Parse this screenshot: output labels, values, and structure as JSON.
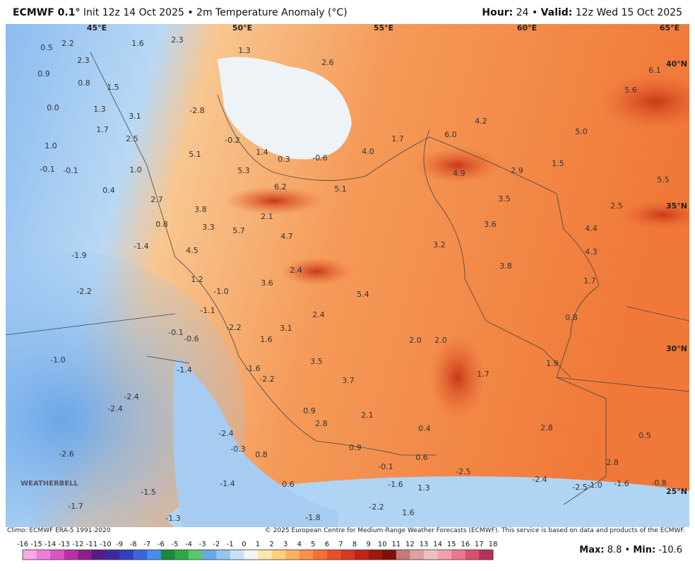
{
  "header": {
    "model": "ECMWF 0.1°",
    "init": "Init 12z 14 Oct 2025 • 2m Temperature Anomaly (°C)",
    "hour_label": "Hour:",
    "hour": "24 •",
    "valid_label": "Valid:",
    "valid": "12z Wed 15 Oct 2025"
  },
  "map_labels": [
    "0.5",
    "2.2",
    "2.3",
    "1.6",
    "2.3",
    "1.3",
    "2.6",
    "0.9",
    "0.8",
    "1.5",
    "0.0",
    "1.3",
    "3.1",
    "-2.8",
    "1.7",
    "2.5",
    "-0.2",
    "1.0",
    "1.4",
    "0.3",
    "-0.6",
    "4.0",
    "1.7",
    "6.0",
    "4.2",
    "5.0",
    "5.6",
    "6.1",
    "5.1",
    "-0.1",
    "-0.1",
    "1.0",
    "5.3",
    "6.2",
    "5.1",
    "4.9",
    "2.9",
    "1.5",
    "5.5",
    "0.4",
    "2.7",
    "3.5",
    "2.5",
    "3.8",
    "2.1",
    "0.8",
    "3.3",
    "5.7",
    "4.7",
    "3.6",
    "4.4",
    "-1.4",
    "4.5",
    "3.2",
    "-1.9",
    "4.3",
    "3.8",
    "2.4",
    "1.2",
    "3.6",
    "1.7",
    "-2.2",
    "-1.0",
    "5.4",
    "-1.1",
    "2.4",
    "0.8",
    "-0.1",
    "-2.2",
    "3.1",
    "-0.6",
    "1.6",
    "2.0",
    "2.0",
    "-1.0",
    "3.5",
    "1.9",
    "-1.6",
    "-1.4",
    "-2.2",
    "3.7",
    "1.7",
    "-2.4",
    "-2.4",
    "0.9",
    "2.1",
    "2.8",
    "0.4",
    "2.8",
    "-2.4",
    "0.5",
    "-0.3",
    "0.9",
    "0.8",
    "-2.6",
    "0.6",
    "-0.1",
    "2.8",
    "-2.5",
    "-1.4",
    "-1.6",
    "0.6",
    "1.3",
    "-2.4",
    "-2.5",
    "-1.0",
    "-1.6",
    "-0.8",
    "-1.5",
    "-1.7",
    "-2.2",
    "1.6",
    "-1.8",
    "-1.3"
  ],
  "grid_labels": [
    "45°E",
    "50°E",
    "55°E",
    "60°E",
    "65°E",
    "40°N",
    "35°N",
    "30°N",
    "25°N"
  ],
  "logo": "WEATHERBELL",
  "footer": {
    "climo": "Climo: ECMWF ERA-5 1991-2020",
    "copyright": "© 2025 European Centre for Medium-Range Weather Forecasts (ECMWF). This service is based on data and products of the ECMWF.",
    "max_label": "Max:",
    "max": "8.8 •",
    "min_label": "Min:",
    "min": "-10.6"
  },
  "colorbar": {
    "ticks": [
      -16,
      -15,
      -14,
      -13,
      -12,
      -11,
      -10,
      -9,
      -8,
      -7,
      -6,
      -5,
      -4,
      -3,
      -2,
      -1,
      0,
      1,
      2,
      3,
      4,
      5,
      6,
      7,
      8,
      9,
      10,
      11,
      12,
      13,
      14,
      15,
      16,
      17,
      18
    ],
    "colors": [
      "#f7a8e8",
      "#ec7ed8",
      "#d856c4",
      "#b92fa6",
      "#8c1f8c",
      "#5a1a8a",
      "#3a2aa0",
      "#3040c0",
      "#3a66d8",
      "#4a8ce8",
      "#1a8a3a",
      "#2aaa4a",
      "#5ac86a",
      "#6aa8e8",
      "#98c4f0",
      "#c8e0f8",
      "#f4f4f4",
      "#fbe6b0",
      "#fdd080",
      "#fdb060",
      "#fb9048",
      "#f47038",
      "#e85028",
      "#d83820",
      "#c02418",
      "#a01810",
      "#801008",
      "#c87878",
      "#e0a0a0",
      "#f0c0c0",
      "#f4a0b0",
      "#e87890",
      "#d85070",
      "#b83058"
    ]
  }
}
